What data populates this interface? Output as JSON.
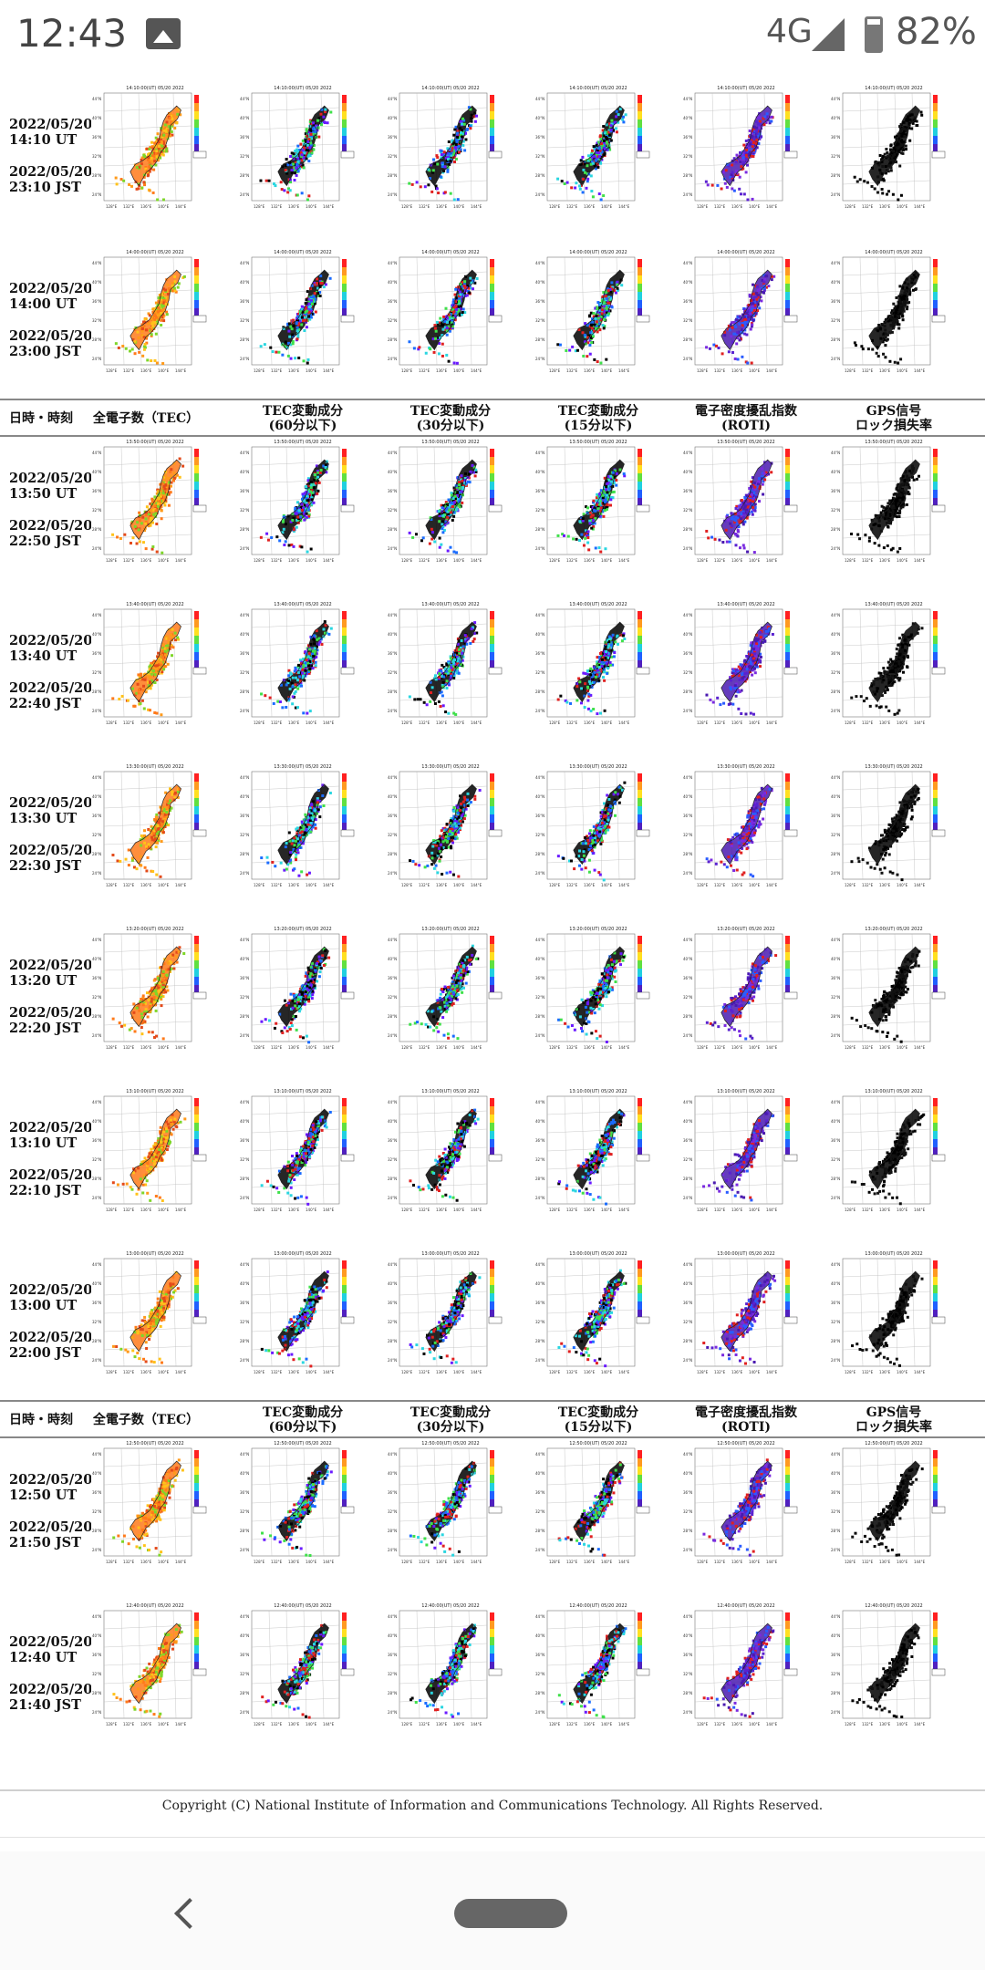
{
  "status_bar": {
    "time": "12:43",
    "network": "4G",
    "battery": "82%"
  },
  "icons": {
    "gallery": "image-icon",
    "signal": "signal-icon",
    "battery": "battery-icon",
    "back": "back-icon",
    "home": "home-pill-icon"
  },
  "headers": [
    "日時・時刻",
    "全電子数（TEC）",
    "TEC変動成分\n(60分以下)",
    "TEC変動成分\n(30分以下)",
    "TEC変動成分\n(15分以下)",
    "電子密度擾乱指数\n(ROTI)",
    "GPS信号\nロック損失率"
  ],
  "rows": [
    {
      "ut_date": "2022/05/20",
      "ut": "14:10 UT",
      "jst_date": "2022/05/20",
      "jst": "23:10 JST",
      "map_title": "14:10:00(UT) 05/20 2022"
    },
    {
      "ut_date": "2022/05/20",
      "ut": "14:00 UT",
      "jst_date": "2022/05/20",
      "jst": "23:00 JST",
      "map_title": "14:00:00(UT) 05/20 2022"
    },
    {
      "ut_date": "2022/05/20",
      "ut": "13:50 UT",
      "jst_date": "2022/05/20",
      "jst": "22:50 JST",
      "map_title": "13:50:00(UT) 05/20 2022"
    },
    {
      "ut_date": "2022/05/20",
      "ut": "13:40 UT",
      "jst_date": "2022/05/20",
      "jst": "22:40 JST",
      "map_title": "13:40:00(UT) 05/20 2022"
    },
    {
      "ut_date": "2022/05/20",
      "ut": "13:30 UT",
      "jst_date": "2022/05/20",
      "jst": "22:30 JST",
      "map_title": "13:30:00(UT) 05/20 2022"
    },
    {
      "ut_date": "2022/05/20",
      "ut": "13:20 UT",
      "jst_date": "2022/05/20",
      "jst": "22:20 JST",
      "map_title": "13:20:00(UT) 05/20 2022"
    },
    {
      "ut_date": "2022/05/20",
      "ut": "13:10 UT",
      "jst_date": "2022/05/20",
      "jst": "22:10 JST",
      "map_title": "13:10:00(UT) 05/20 2022"
    },
    {
      "ut_date": "2022/05/20",
      "ut": "13:00 UT",
      "jst_date": "2022/05/20",
      "jst": "22:00 JST",
      "map_title": "13:00:00(UT) 05/20 2022"
    },
    {
      "ut_date": "2022/05/20",
      "ut": "12:50 UT",
      "jst_date": "2022/05/20",
      "jst": "21:50 JST",
      "map_title": "12:50:00(UT) 05/20 2022"
    },
    {
      "ut_date": "2022/05/20",
      "ut": "12:40 UT",
      "jst_date": "2022/05/20",
      "jst": "21:40 JST",
      "map_title": "12:40:00(UT) 05/20 2022"
    }
  ],
  "map_axis": {
    "lat_ticks": [
      "44°N",
      "40°N",
      "36°N",
      "32°N",
      "28°N",
      "24°N"
    ],
    "lon_ticks": [
      "128°E",
      "132°E",
      "136°E",
      "140°E",
      "144°E"
    ]
  },
  "map_palettes": {
    "tec": [
      "#ff7a1a",
      "#ff9a1a",
      "#ffc21a",
      "#e34a1a",
      "#7fd62a"
    ],
    "dtec": [
      "#000000",
      "#e02020",
      "#1a6cff",
      "#2ad6e0",
      "#3fe04a",
      "#6a1aff"
    ],
    "roti": [
      "#4a1ab0",
      "#5a22d0",
      "#e02020",
      "#2a5cff",
      "#7a2ae0"
    ],
    "lol": [
      "#000000",
      "#111111"
    ]
  },
  "copyright": "Copyright (C) National Institute of Information and Communications Technology. All Rights Reserved."
}
